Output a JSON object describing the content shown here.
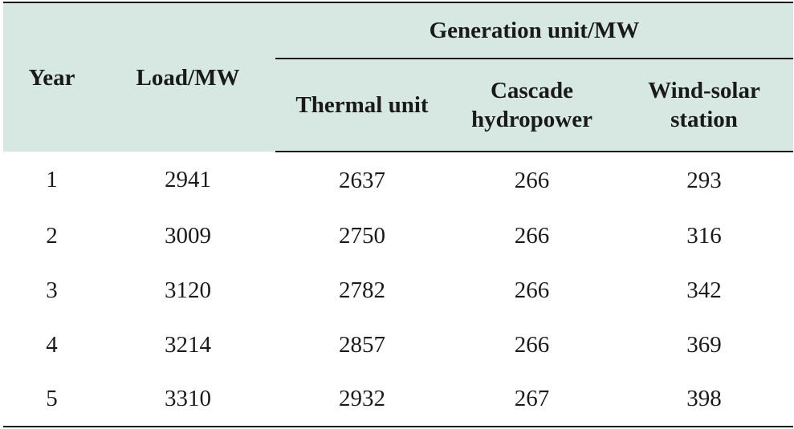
{
  "table": {
    "headers": {
      "year": "Year",
      "load": "Load/MW",
      "group": "Generation unit/MW",
      "thermal": "Thermal unit",
      "cascade_line1": "Cascade",
      "cascade_line2": "hydropower",
      "wind_line1": "Wind-solar",
      "wind_line2": "station"
    },
    "rows": [
      {
        "year": "1",
        "load": "2941",
        "thermal": "2637",
        "cascade": "266",
        "wind": "293"
      },
      {
        "year": "2",
        "load": "3009",
        "thermal": "2750",
        "cascade": "266",
        "wind": "316"
      },
      {
        "year": "3",
        "load": "3120",
        "thermal": "2782",
        "cascade": "266",
        "wind": "342"
      },
      {
        "year": "4",
        "load": "3214",
        "thermal": "2857",
        "cascade": "266",
        "wind": "369"
      },
      {
        "year": "5",
        "load": "3310",
        "thermal": "2932",
        "cascade": "267",
        "wind": "398"
      }
    ]
  },
  "colors": {
    "header_background": "#d7e7e1",
    "rule": "#1a1a1a"
  }
}
